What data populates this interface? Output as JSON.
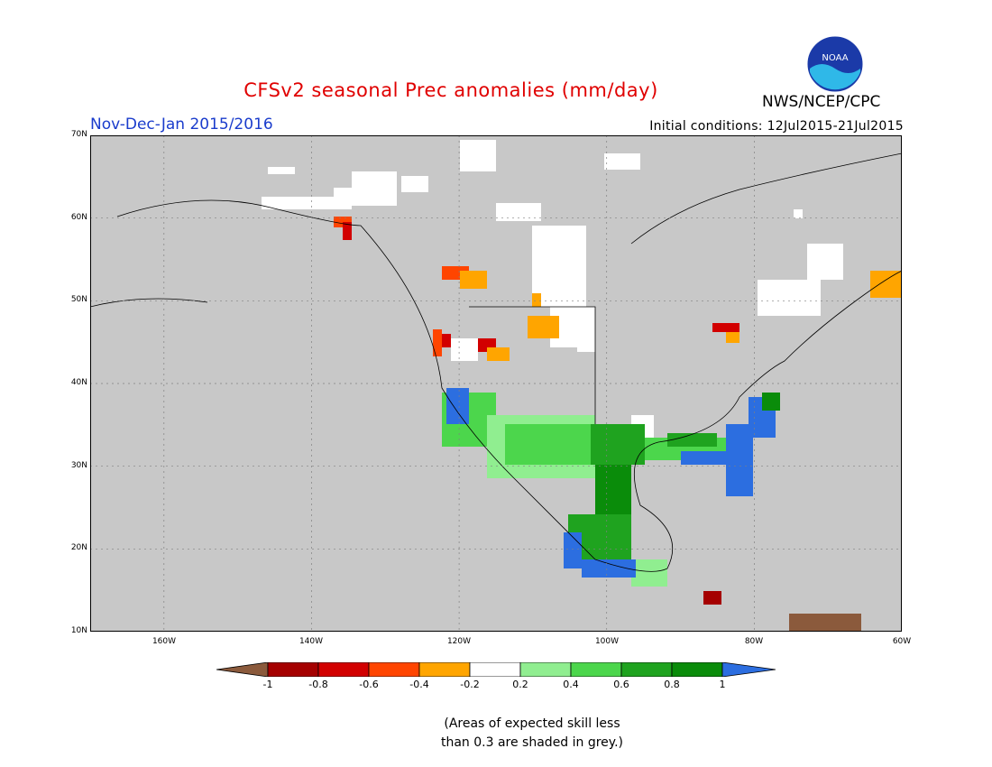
{
  "header": {
    "title": "CFSv2 seasonal Prec anomalies (mm/day)",
    "period": "Nov-Dec-Jan 2015/2016",
    "initial_conditions": "Initial conditions: 12Jul2015-21Jul2015",
    "agency": "NWS/NCEP/CPC",
    "logo_text": "NOAA"
  },
  "map": {
    "lat_ticks": [
      "70N",
      "60N",
      "50N",
      "40N",
      "30N",
      "20N",
      "10N"
    ],
    "lon_ticks": [
      "160W",
      "140W",
      "120W",
      "100W",
      "80W",
      "60W"
    ],
    "masked_color": "#c8c8c8",
    "background": "#c0c0c0"
  },
  "legend": {
    "labels": [
      "-1",
      "-0.8",
      "-0.6",
      "-0.4",
      "-0.2",
      "0.2",
      "0.4",
      "0.6",
      "0.8",
      "1"
    ],
    "colors": [
      "#8b5a3c",
      "#a50000",
      "#d20000",
      "#ff4500",
      "#ffa500",
      "#ffffff",
      "#90ee90",
      "#4cd64c",
      "#1fa31f",
      "#0a8c0a",
      "#2c6ee0"
    ],
    "note_line1": "(Areas of expected skill less",
    "note_line2": "than 0.3 are shaded in grey.)"
  }
}
